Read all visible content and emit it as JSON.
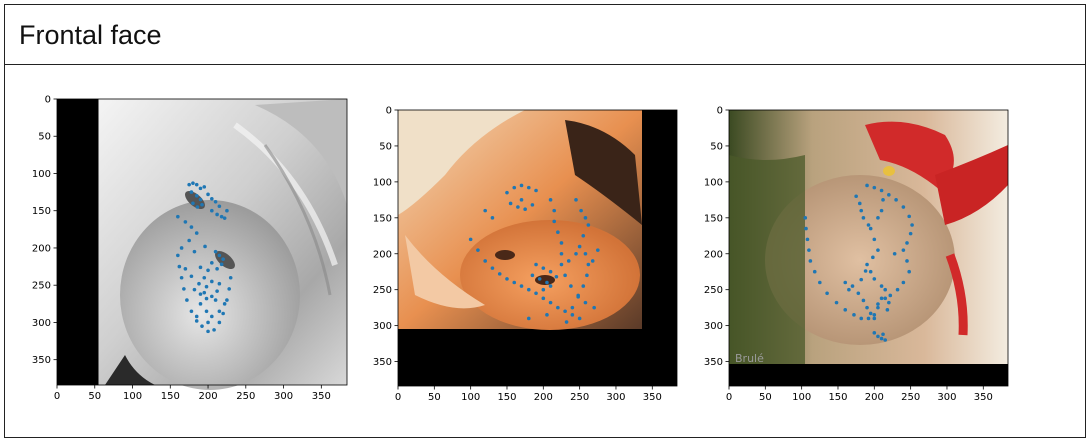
{
  "title": "Frontal face",
  "panels": [
    {
      "id": "panel-1",
      "image": "grayscale face lying rotated, black padding strip on left",
      "content_bounds": {
        "x": [
          55,
          384
        ],
        "y": [
          0,
          384
        ]
      },
      "x_ticks": [
        "0",
        "50",
        "100",
        "150",
        "200",
        "250",
        "300",
        "350"
      ],
      "y_ticks": [
        "0",
        "50",
        "100",
        "150",
        "200",
        "250",
        "300",
        "350"
      ],
      "xlim": [
        0,
        384
      ],
      "ylim": [
        0,
        384
      ],
      "landmarks": [
        [
          175,
          115
        ],
        [
          180,
          113
        ],
        [
          185,
          115
        ],
        [
          190,
          120
        ],
        [
          195,
          118
        ],
        [
          178,
          125
        ],
        [
          185,
          130
        ],
        [
          190,
          135
        ],
        [
          180,
          140
        ],
        [
          186,
          145
        ],
        [
          192,
          142
        ],
        [
          200,
          128
        ],
        [
          205,
          134
        ],
        [
          210,
          138
        ],
        [
          215,
          144
        ],
        [
          205,
          150
        ],
        [
          212,
          155
        ],
        [
          218,
          158
        ],
        [
          225,
          150
        ],
        [
          222,
          160
        ],
        [
          160,
          158
        ],
        [
          170,
          165
        ],
        [
          178,
          172
        ],
        [
          185,
          180
        ],
        [
          175,
          190
        ],
        [
          165,
          200
        ],
        [
          160,
          210
        ],
        [
          162,
          225
        ],
        [
          165,
          240
        ],
        [
          168,
          255
        ],
        [
          172,
          270
        ],
        [
          178,
          285
        ],
        [
          185,
          298
        ],
        [
          192,
          305
        ],
        [
          200,
          312
        ],
        [
          208,
          310
        ],
        [
          215,
          300
        ],
        [
          220,
          288
        ],
        [
          225,
          270
        ],
        [
          228,
          255
        ],
        [
          230,
          240
        ],
        [
          210,
          205
        ],
        [
          215,
          210
        ],
        [
          220,
          215
        ],
        [
          218,
          222
        ],
        [
          212,
          228
        ],
        [
          205,
          220
        ],
        [
          200,
          230
        ],
        [
          195,
          240
        ],
        [
          188,
          248
        ],
        [
          182,
          256
        ],
        [
          190,
          262
        ],
        [
          198,
          268
        ],
        [
          205,
          265
        ],
        [
          212,
          258
        ],
        [
          215,
          248
        ],
        [
          205,
          245
        ],
        [
          198,
          252
        ],
        [
          190,
          275
        ],
        [
          198,
          285
        ],
        [
          205,
          292
        ],
        [
          215,
          285
        ],
        [
          222,
          275
        ],
        [
          210,
          270
        ],
        [
          185,
          292
        ],
        [
          200,
          300
        ],
        [
          190,
          226
        ],
        [
          195,
          260
        ],
        [
          178,
          238
        ],
        [
          182,
          205
        ],
        [
          196,
          198
        ],
        [
          170,
          228
        ]
      ]
    },
    {
      "id": "panel-2",
      "image": "orange-tinted face lying sideways, black padding on right and bottom",
      "content_bounds": {
        "x": [
          0,
          335
        ],
        "y": [
          0,
          305
        ]
      },
      "x_ticks": [
        "0",
        "50",
        "100",
        "150",
        "200",
        "250",
        "300",
        "350"
      ],
      "y_ticks": [
        "0",
        "50",
        "100",
        "150",
        "200",
        "250",
        "300",
        "350"
      ],
      "xlim": [
        0,
        384
      ],
      "ylim": [
        0,
        384
      ],
      "landmarks": [
        [
          150,
          115
        ],
        [
          160,
          108
        ],
        [
          170,
          105
        ],
        [
          180,
          108
        ],
        [
          190,
          112
        ],
        [
          155,
          130
        ],
        [
          165,
          135
        ],
        [
          175,
          138
        ],
        [
          185,
          132
        ],
        [
          170,
          125
        ],
        [
          210,
          125
        ],
        [
          215,
          140
        ],
        [
          215,
          155
        ],
        [
          220,
          170
        ],
        [
          225,
          185
        ],
        [
          225,
          200
        ],
        [
          225,
          215
        ],
        [
          230,
          230
        ],
        [
          238,
          245
        ],
        [
          248,
          258
        ],
        [
          258,
          268
        ],
        [
          270,
          275
        ],
        [
          100,
          180
        ],
        [
          110,
          195
        ],
        [
          120,
          210
        ],
        [
          130,
          220
        ],
        [
          140,
          228
        ],
        [
          150,
          235
        ],
        [
          160,
          240
        ],
        [
          170,
          245
        ],
        [
          180,
          250
        ],
        [
          190,
          255
        ],
        [
          200,
          262
        ],
        [
          210,
          268
        ],
        [
          220,
          275
        ],
        [
          230,
          280
        ],
        [
          240,
          285
        ],
        [
          250,
          290
        ],
        [
          245,
          125
        ],
        [
          252,
          140
        ],
        [
          258,
          150
        ],
        [
          262,
          160
        ],
        [
          255,
          175
        ],
        [
          250,
          190
        ],
        [
          258,
          200
        ],
        [
          262,
          215
        ],
        [
          260,
          230
        ],
        [
          255,
          245
        ],
        [
          248,
          260
        ],
        [
          240,
          275
        ],
        [
          190,
          215
        ],
        [
          200,
          220
        ],
        [
          210,
          225
        ],
        [
          218,
          232
        ],
        [
          205,
          240
        ],
        [
          195,
          235
        ],
        [
          185,
          230
        ],
        [
          200,
          250
        ],
        [
          210,
          245
        ],
        [
          180,
          290
        ],
        [
          205,
          285
        ],
        [
          232,
          295
        ],
        [
          275,
          195
        ],
        [
          268,
          210
        ],
        [
          120,
          140
        ],
        [
          130,
          150
        ],
        [
          245,
          200
        ],
        [
          235,
          210
        ]
      ]
    },
    {
      "id": "panel-3",
      "image": "face lying on side with red bikini top, black padding at bottom, watermark text",
      "watermark": "Brulé",
      "content_bounds": {
        "x": [
          0,
          384
        ],
        "y": [
          0,
          352
        ]
      },
      "x_ticks": [
        "0",
        "50",
        "100",
        "150",
        "200",
        "250",
        "300",
        "350"
      ],
      "y_ticks": [
        "0",
        "50",
        "100",
        "150",
        "200",
        "250",
        "300",
        "350"
      ],
      "xlim": [
        0,
        384
      ],
      "ylim": [
        0,
        384
      ],
      "landmarks": [
        [
          105,
          150
        ],
        [
          106,
          165
        ],
        [
          108,
          180
        ],
        [
          110,
          195
        ],
        [
          112,
          210
        ],
        [
          118,
          225
        ],
        [
          125,
          240
        ],
        [
          135,
          255
        ],
        [
          148,
          268
        ],
        [
          160,
          278
        ],
        [
          172,
          285
        ],
        [
          182,
          290
        ],
        [
          192,
          290
        ],
        [
          200,
          285
        ],
        [
          205,
          275
        ],
        [
          210,
          262
        ],
        [
          215,
          250
        ],
        [
          190,
          105
        ],
        [
          200,
          108
        ],
        [
          210,
          112
        ],
        [
          220,
          118
        ],
        [
          230,
          125
        ],
        [
          240,
          135
        ],
        [
          248,
          148
        ],
        [
          252,
          160
        ],
        [
          250,
          172
        ],
        [
          245,
          185
        ],
        [
          240,
          195
        ],
        [
          228,
          200
        ],
        [
          245,
          210
        ],
        [
          248,
          225
        ],
        [
          240,
          240
        ],
        [
          232,
          250
        ],
        [
          222,
          258
        ],
        [
          215,
          262
        ],
        [
          205,
          270
        ],
        [
          210,
          245
        ],
        [
          200,
          235
        ],
        [
          195,
          225
        ],
        [
          190,
          215
        ],
        [
          198,
          205
        ],
        [
          205,
          195
        ],
        [
          200,
          180
        ],
        [
          195,
          165
        ],
        [
          205,
          150
        ],
        [
          210,
          140
        ],
        [
          212,
          125
        ],
        [
          175,
          120
        ],
        [
          180,
          130
        ],
        [
          182,
          140
        ],
        [
          185,
          150
        ],
        [
          192,
          160
        ],
        [
          170,
          245
        ],
        [
          178,
          255
        ],
        [
          185,
          265
        ],
        [
          190,
          275
        ],
        [
          195,
          283
        ],
        [
          200,
          290
        ],
        [
          220,
          268
        ],
        [
          218,
          278
        ],
        [
          200,
          310
        ],
        [
          205,
          315
        ],
        [
          210,
          318
        ],
        [
          215,
          320
        ],
        [
          212,
          312
        ],
        [
          160,
          240
        ],
        [
          165,
          250
        ],
        [
          182,
          236
        ],
        [
          188,
          224
        ]
      ]
    }
  ]
}
